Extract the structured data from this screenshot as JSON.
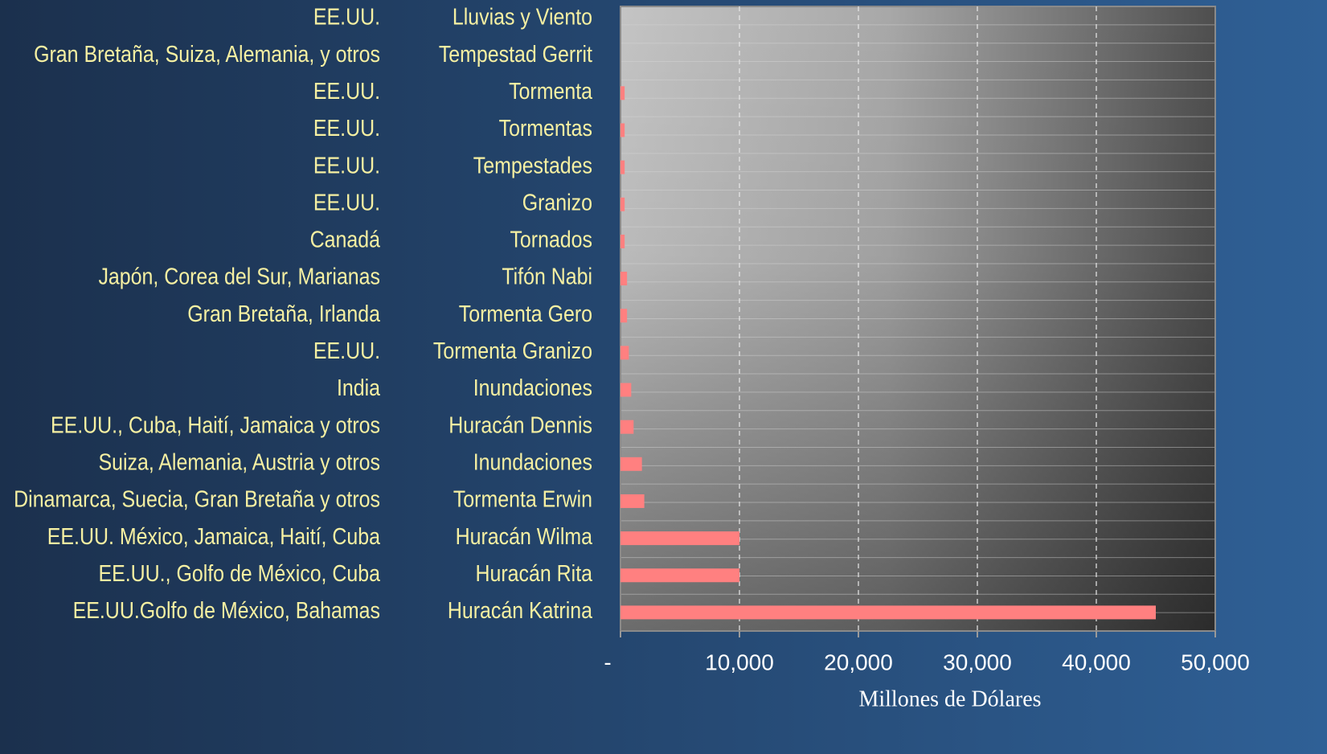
{
  "chart_data": {
    "type": "hbar",
    "xlabel": "Millones de Dólares",
    "regions": [
      "EE.UU.",
      "Gran Bretaña, Suiza, Alemania, y otros",
      "EE.UU.",
      "EE.UU.",
      "EE.UU.",
      "EE.UU.",
      "Canadá",
      "Japón, Corea del Sur, Marianas",
      "Gran Bretaña, Irlanda",
      "EE.UU.",
      "India",
      "EE.UU., Cuba, Haití, Jamaica y otros",
      "Suiza, Alemania, Austria y otros",
      "Dinamarca, Suecia, Gran Bretaña y otros",
      "EE.UU. México, Jamaica, Haití, Cuba",
      "EE.UU., Golfo de México, Cuba",
      "EE.UU.Golfo de México, Bahamas"
    ],
    "categories": [
      "Lluvias y Viento",
      "Tempestad Gerrit",
      "Tormenta",
      "Tormentas",
      "Tempestades",
      "Granizo",
      "Tornados",
      "Tifón Nabi",
      "Tormenta Gero",
      "Tormenta Granizo",
      "Inundaciones",
      "Huracán Dennis",
      "Inundaciones",
      "Tormenta Erwin",
      "Huracán Wilma",
      "Huracán Rita",
      "Huracán Katrina"
    ],
    "values": [
      0,
      0,
      350,
      350,
      350,
      350,
      350,
      550,
      550,
      700,
      900,
      1100,
      1800,
      2000,
      10000,
      10000,
      45000
    ],
    "color": "#ff8080",
    "xlim": [
      0,
      50000
    ],
    "xticks": [
      {
        "value": 0,
        "label": "-"
      },
      {
        "value": 10000,
        "label": "10,000"
      },
      {
        "value": 20000,
        "label": "20,000"
      },
      {
        "value": 30000,
        "label": "30,000"
      },
      {
        "value": 40000,
        "label": "40,000"
      },
      {
        "value": 50000,
        "label": "50,000"
      }
    ],
    "grid": true
  }
}
